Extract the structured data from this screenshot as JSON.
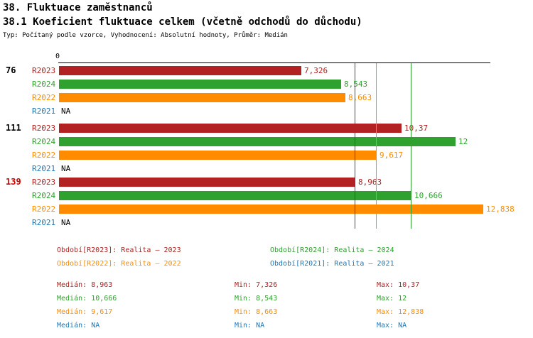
{
  "header": {
    "title": "38. Fluktuace zaměstnanců",
    "subtitle": "38.1 Koeficient fluktuace celkem (včetně odchodů do důchodu)",
    "type_line": "Typ: Počítaný podle vzorce, Vyhodnocení: Absolutní hodnoty, Průměr: Medián"
  },
  "chart_data": {
    "type": "bar",
    "orientation": "horizontal",
    "grid": false,
    "legend_position": "bottom",
    "value_axis": {
      "origin_label": "0",
      "xlim_estimate": [
        0,
        13.1
      ]
    },
    "series": [
      {
        "name": "R2023",
        "color": "#b22222",
        "legend_label": "Období[R2023]: Realita – 2023",
        "median_value": 8.963,
        "median_display": "8,963",
        "min_display": "7,326",
        "max_display": "10,37"
      },
      {
        "name": "R2024",
        "color": "#2ea12e",
        "legend_label": "Období[R2024]: Realita – 2024",
        "median_value": 10.666,
        "median_display": "10,666",
        "min_display": "8,543",
        "max_display": "12"
      },
      {
        "name": "R2022",
        "color": "#ff8c00",
        "legend_label": "Období[R2022]: Realita – 2022",
        "median_value": 9.617,
        "median_display": "9,617",
        "min_display": "8,663",
        "max_display": "12,838"
      },
      {
        "name": "R2021",
        "color": "#1f77b4",
        "legend_label": "Období[R2021]: Realita – 2021",
        "median_value": null,
        "median_display": "NA",
        "min_display": "NA",
        "max_display": "NA"
      }
    ],
    "groups": [
      {
        "label": "76",
        "label_color": "#000000",
        "values": [
          7.326,
          8.543,
          8.663,
          null
        ],
        "displays": [
          "7,326",
          "8,543",
          "8,663",
          "NA"
        ]
      },
      {
        "label": "111",
        "label_color": "#000000",
        "values": [
          10.37,
          12,
          9.617,
          null
        ],
        "displays": [
          "10,37",
          "12",
          "9,617",
          "NA"
        ]
      },
      {
        "label": "139",
        "label_color": "#cc0000",
        "values": [
          8.963,
          10.666,
          12.838,
          null
        ],
        "displays": [
          "8,963",
          "10,666",
          "12,838",
          "NA"
        ]
      }
    ],
    "stats_labels": {
      "median": "Medián:",
      "min": "Min:",
      "max": "Max:"
    }
  }
}
